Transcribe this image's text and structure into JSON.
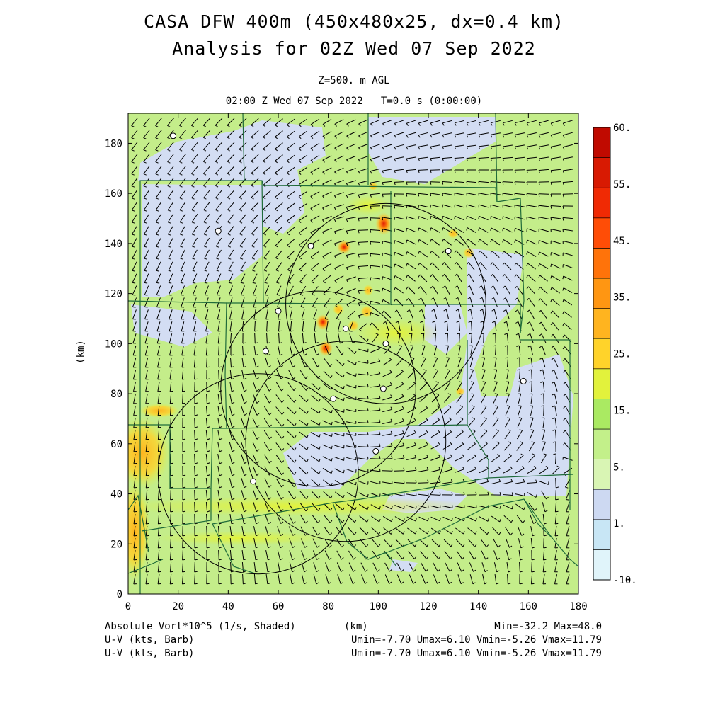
{
  "title_line1": "CASA DFW 400m (450x480x25, dx=0.4 km)",
  "title_line2": "Analysis for 02Z Wed 07 Sep 2022",
  "subtitle_level": "Z=500. m AGL",
  "subtitle_time": "02:00 Z Wed 07 Sep 2022   T=0.0 s (0:00:00)",
  "footer": {
    "field_label": "Absolute Vort*10^5 (1/s, Shaded)",
    "xunit": "(km)",
    "minmax": "Min=-32.2 Max=48.0",
    "barb_label_1": "U-V (kts, Barb)",
    "barb_stats_1": "Umin=-7.70 Umax=6.10 Vmin=-5.26 Vmax=11.79",
    "barb_label_2": "U-V (kts, Barb)",
    "barb_stats_2": "Umin=-7.70 Umax=6.10 Vmin=-5.26 Vmax=11.79"
  },
  "axes": {
    "ylabel": "(km)",
    "xlim": [
      0,
      180
    ],
    "ylim": [
      0,
      192
    ],
    "xticks": [
      0,
      20,
      40,
      60,
      80,
      100,
      120,
      140,
      160,
      180
    ],
    "yticks": [
      0,
      20,
      40,
      60,
      80,
      100,
      120,
      140,
      160,
      180
    ]
  },
  "colorbar": {
    "colors": [
      "#e0f4fa",
      "#c8e6f5",
      "#cdd9f2",
      "#d9f5b4",
      "#c3f08a",
      "#aaea62",
      "#e2f23c",
      "#ffd32a",
      "#ffb41f",
      "#ff9612",
      "#ff730a",
      "#ff4d06",
      "#f02a04",
      "#d81a02",
      "#c00a00"
    ],
    "labels": [
      "60.",
      "55.",
      "45.",
      "35.",
      "25.",
      "15.",
      "5.",
      "1.",
      "-10."
    ]
  },
  "map": {
    "background_color": "#c4ed8a",
    "circles": [
      {
        "cx": 103,
        "cy": 116,
        "r": 40
      },
      {
        "cx": 76,
        "cy": 82,
        "r": 39
      },
      {
        "cx": 87,
        "cy": 61,
        "r": 40
      },
      {
        "cx": 52,
        "cy": 48,
        "r": 40
      }
    ],
    "markers": [
      [
        18,
        183
      ],
      [
        36,
        145
      ],
      [
        73,
        139
      ],
      [
        128,
        137
      ],
      [
        60,
        113
      ],
      [
        87,
        106
      ],
      [
        55,
        97
      ],
      [
        103,
        100
      ],
      [
        102,
        82
      ],
      [
        82,
        78
      ],
      [
        158,
        85
      ],
      [
        99,
        57
      ],
      [
        50,
        45
      ]
    ]
  }
}
